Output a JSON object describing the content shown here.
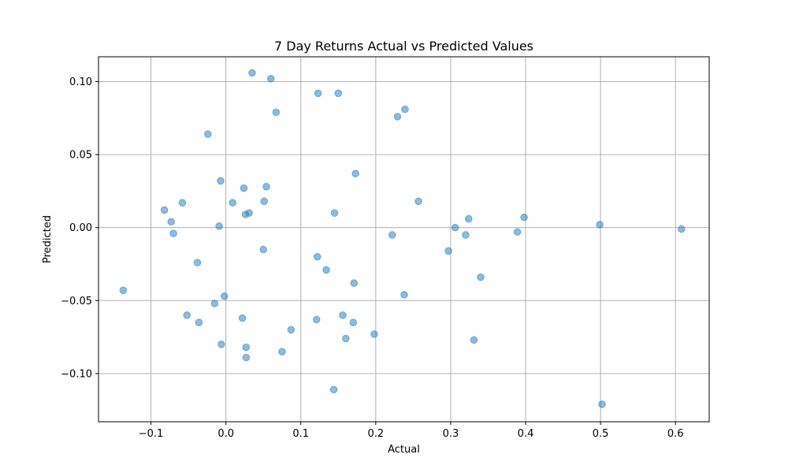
{
  "chart_data": {
    "type": "scatter",
    "title": "7 Day Returns Actual vs Predicted Values",
    "xlabel": "Actual",
    "ylabel": "Predicted",
    "xlim": [
      -0.17,
      0.645
    ],
    "ylim": [
      -0.133,
      0.117
    ],
    "xticks": [
      -0.1,
      0.0,
      0.1,
      0.2,
      0.3,
      0.4,
      0.5,
      0.6
    ],
    "xtick_labels": [
      "−0.1",
      "0.0",
      "0.1",
      "0.2",
      "0.3",
      "0.4",
      "0.5",
      "0.6"
    ],
    "yticks": [
      -0.1,
      -0.05,
      0.0,
      0.05,
      0.1
    ],
    "ytick_labels": [
      "−0.10",
      "−0.05",
      "0.00",
      "0.05",
      "0.10"
    ],
    "grid": true,
    "point_color": "#1f77b4",
    "point_opacity": 0.5,
    "points": [
      {
        "x": -0.137,
        "y": -0.043
      },
      {
        "x": -0.082,
        "y": 0.012
      },
      {
        "x": -0.073,
        "y": 0.004
      },
      {
        "x": -0.07,
        "y": -0.004
      },
      {
        "x": -0.058,
        "y": 0.017
      },
      {
        "x": -0.052,
        "y": -0.06
      },
      {
        "x": -0.038,
        "y": -0.024
      },
      {
        "x": -0.036,
        "y": -0.065
      },
      {
        "x": -0.024,
        "y": 0.064
      },
      {
        "x": -0.015,
        "y": -0.052
      },
      {
        "x": -0.009,
        "y": 0.001
      },
      {
        "x": -0.007,
        "y": 0.032
      },
      {
        "x": -0.006,
        "y": -0.08
      },
      {
        "x": -0.002,
        "y": -0.047
      },
      {
        "x": 0.009,
        "y": 0.017
      },
      {
        "x": 0.022,
        "y": -0.062
      },
      {
        "x": 0.024,
        "y": 0.027
      },
      {
        "x": 0.026,
        "y": 0.009
      },
      {
        "x": 0.027,
        "y": -0.082
      },
      {
        "x": 0.027,
        "y": -0.089
      },
      {
        "x": 0.031,
        "y": 0.01
      },
      {
        "x": 0.035,
        "y": 0.106
      },
      {
        "x": 0.05,
        "y": -0.015
      },
      {
        "x": 0.051,
        "y": 0.018
      },
      {
        "x": 0.054,
        "y": 0.028
      },
      {
        "x": 0.06,
        "y": 0.102
      },
      {
        "x": 0.067,
        "y": 0.079
      },
      {
        "x": 0.075,
        "y": -0.085
      },
      {
        "x": 0.087,
        "y": -0.07
      },
      {
        "x": 0.121,
        "y": -0.063
      },
      {
        "x": 0.122,
        "y": -0.02
      },
      {
        "x": 0.123,
        "y": 0.092
      },
      {
        "x": 0.134,
        "y": -0.029
      },
      {
        "x": 0.144,
        "y": -0.111
      },
      {
        "x": 0.145,
        "y": 0.01
      },
      {
        "x": 0.15,
        "y": 0.092
      },
      {
        "x": 0.156,
        "y": -0.06
      },
      {
        "x": 0.16,
        "y": -0.076
      },
      {
        "x": 0.17,
        "y": -0.065
      },
      {
        "x": 0.171,
        "y": -0.038
      },
      {
        "x": 0.173,
        "y": 0.037
      },
      {
        "x": 0.198,
        "y": -0.073
      },
      {
        "x": 0.222,
        "y": -0.005
      },
      {
        "x": 0.229,
        "y": 0.076
      },
      {
        "x": 0.238,
        "y": -0.046
      },
      {
        "x": 0.239,
        "y": 0.081
      },
      {
        "x": 0.257,
        "y": 0.018
      },
      {
        "x": 0.297,
        "y": -0.016
      },
      {
        "x": 0.306,
        "y": 0.0
      },
      {
        "x": 0.32,
        "y": -0.005
      },
      {
        "x": 0.324,
        "y": 0.006
      },
      {
        "x": 0.331,
        "y": -0.077
      },
      {
        "x": 0.34,
        "y": -0.034
      },
      {
        "x": 0.389,
        "y": -0.003
      },
      {
        "x": 0.398,
        "y": 0.007
      },
      {
        "x": 0.499,
        "y": 0.002
      },
      {
        "x": 0.502,
        "y": -0.121
      },
      {
        "x": 0.608,
        "y": -0.001
      }
    ]
  }
}
